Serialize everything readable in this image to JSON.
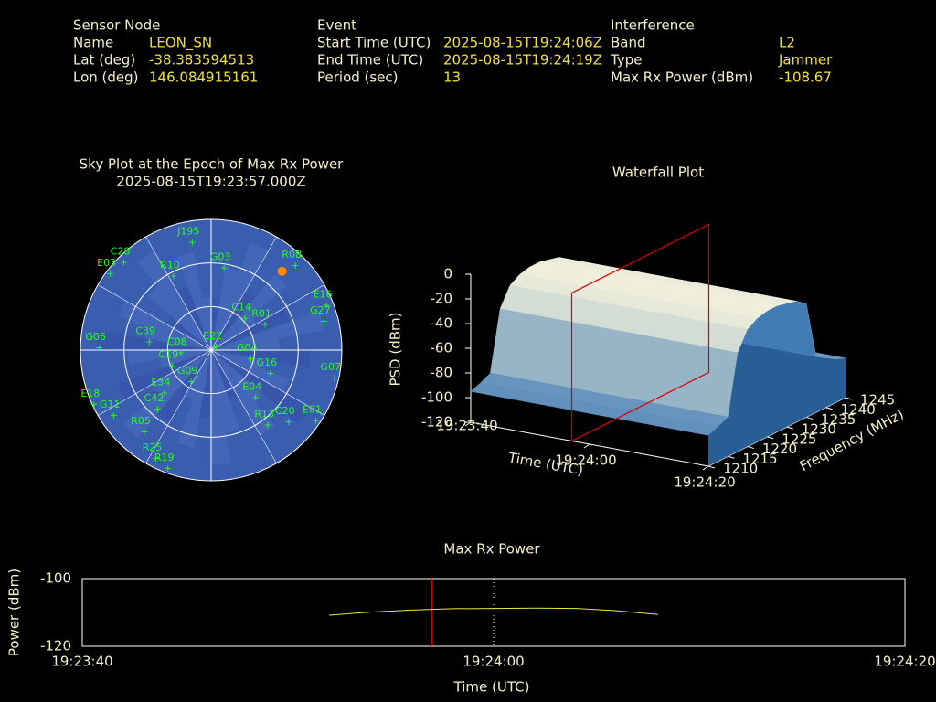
{
  "header": {
    "sensor": {
      "title": "Sensor Node",
      "fields": [
        {
          "label": "Name",
          "value": "LEON_SN"
        },
        {
          "label": "Lat (deg)",
          "value": "-38.383594513"
        },
        {
          "label": "Lon (deg)",
          "value": "146.084915161"
        }
      ]
    },
    "event": {
      "title": "Event",
      "fields": [
        {
          "label": "Start Time (UTC)",
          "value": "2025-08-15T19:24:06Z"
        },
        {
          "label": "End Time (UTC)",
          "value": "2025-08-15T19:24:19Z"
        },
        {
          "label": "Period (sec)",
          "value": "13"
        }
      ]
    },
    "interference": {
      "title": "Interference",
      "fields": [
        {
          "label": "Band",
          "value": "L2"
        },
        {
          "label": "Type",
          "value": "Jammer"
        },
        {
          "label": "Max Rx Power (dBm)",
          "value": "-108.67"
        }
      ]
    }
  },
  "chart_data": [
    {
      "type": "skyplot",
      "title": "Sky Plot at the Epoch of Max Rx Power",
      "subtitle": "2025-08-15T19:23:57.000Z",
      "elevation_rings": [
        0,
        30,
        60
      ],
      "spokes": [
        0,
        30,
        60,
        90,
        120,
        150,
        180,
        210,
        240,
        270,
        300,
        330
      ],
      "color": "#20ff20",
      "background": "#3b5db0",
      "highlight": {
        "azimuth": 42,
        "elevation": 17,
        "color": "#ff8c00"
      },
      "satellites": [
        {
          "name": "J195",
          "azimuth": 350,
          "elevation": 15
        },
        {
          "name": "C28",
          "azimuth": 315,
          "elevation": 5
        },
        {
          "name": "E03",
          "azimuth": 307,
          "elevation": 3
        },
        {
          "name": "G03",
          "azimuth": 9,
          "elevation": 33
        },
        {
          "name": "R08",
          "azimuth": 45,
          "elevation": 8
        },
        {
          "name": "E16",
          "azimuth": 69,
          "elevation": 5
        },
        {
          "name": "G27",
          "azimuth": 76,
          "elevation": 10
        },
        {
          "name": "C14",
          "azimuth": 47,
          "elevation": 58
        },
        {
          "name": "R01",
          "azimuth": 65,
          "elevation": 49
        },
        {
          "name": "R10",
          "azimuth": 333,
          "elevation": 33
        },
        {
          "name": "C39",
          "azimuth": 277,
          "elevation": 47
        },
        {
          "name": "G06",
          "azimuth": 271,
          "elevation": 13
        },
        {
          "name": "C08",
          "azimuth": 264,
          "elevation": 69
        },
        {
          "name": "C19",
          "azimuth": 248,
          "elevation": 61
        },
        {
          "name": "E22",
          "azimuth": 63,
          "elevation": 86
        },
        {
          "name": "G04",
          "azimuth": 103,
          "elevation": 62
        },
        {
          "name": "G16",
          "azimuth": 112,
          "elevation": 46
        },
        {
          "name": "G07",
          "azimuth": 103,
          "elevation": 3
        },
        {
          "name": "G09",
          "azimuth": 212,
          "elevation": 64
        },
        {
          "name": "E34",
          "azimuth": 227,
          "elevation": 46
        },
        {
          "name": "C42",
          "azimuth": 222,
          "elevation": 35
        },
        {
          "name": "E04",
          "azimuth": 137,
          "elevation": 45
        },
        {
          "name": "E01",
          "azimuth": 124,
          "elevation": 3
        },
        {
          "name": "C20",
          "azimuth": 133,
          "elevation": 17
        },
        {
          "name": "R13",
          "azimuth": 143,
          "elevation": 25
        },
        {
          "name": "E18",
          "azimuth": 245,
          "elevation": 1
        },
        {
          "name": "G11",
          "azimuth": 236,
          "elevation": 9
        },
        {
          "name": "R05",
          "azimuth": 219,
          "elevation": 17
        },
        {
          "name": "R25",
          "azimuth": 207,
          "elevation": 6
        },
        {
          "name": "R19",
          "azimuth": 200,
          "elevation": 3
        }
      ]
    },
    {
      "type": "waterfall3d",
      "title": "Waterfall Plot",
      "xlabel": "Time (UTC)",
      "ylabel": "Frequency (MHz)",
      "zlabel": "PSD (dBm)",
      "xlim": [
        "19:23:40",
        "19:24:20"
      ],
      "xticks": [
        "19:23:40",
        "19:24:00",
        "19:24:20"
      ],
      "ylim": [
        1210,
        1245
      ],
      "yticks": [
        1210,
        1215,
        1220,
        1225,
        1230,
        1235,
        1240,
        1245
      ],
      "zlim": [
        -120,
        0
      ],
      "zticks": [
        -120,
        -100,
        -80,
        -60,
        -40,
        -20,
        0
      ],
      "frequencies": [
        1210,
        1212.5,
        1215,
        1217.5,
        1220,
        1222.5,
        1225,
        1227.5,
        1230,
        1232.5,
        1235,
        1237.5,
        1240,
        1242.5,
        1245
      ],
      "psd": [
        -95,
        -92,
        -88,
        -40,
        -25,
        -20,
        -18,
        -18,
        -20,
        -22,
        -28,
        -75,
        -80,
        -85,
        -88
      ],
      "marker": "19:23:57",
      "marker_color": "#dd0000",
      "low_color": "#2e6fb0",
      "high_color": "#f4f2dc"
    },
    {
      "type": "line",
      "title": "Max Rx Power",
      "xlabel": "Time (UTC)",
      "ylabel": "Power (dBm)",
      "xlim": [
        "19:23:40",
        "19:24:20"
      ],
      "xticks": [
        "19:23:40",
        "19:24:00",
        "19:24:20"
      ],
      "ylim": [
        -120,
        -100
      ],
      "yticks": [
        -120,
        -100
      ],
      "grid": true,
      "x": [
        "19:23:52",
        "19:23:54",
        "19:23:56",
        "19:23:58",
        "19:24:00",
        "19:24:02",
        "19:24:04",
        "19:24:06",
        "19:24:08"
      ],
      "values": [
        -110.8,
        -109.9,
        -109.3,
        -108.9,
        -108.8,
        -108.7,
        -108.8,
        -109.5,
        -110.6
      ],
      "color": "#e8e840",
      "marker": "19:23:57",
      "marker_color": "#dd0000"
    }
  ]
}
